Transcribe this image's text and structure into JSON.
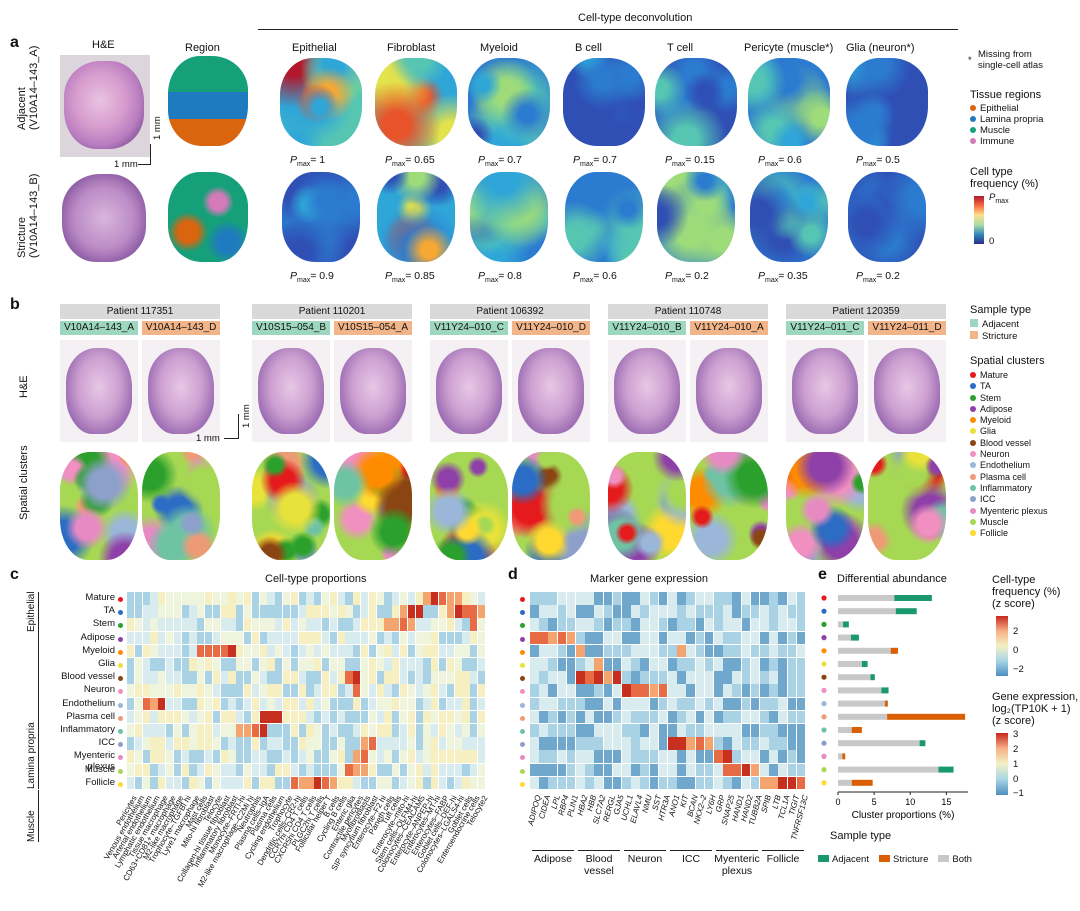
{
  "panel_a": {
    "letter": "a",
    "deconv_title": "Cell-type deconvolution",
    "he_label": "H&E",
    "region_label": "Region",
    "scale_h": "1 mm",
    "scale_v": "1 mm",
    "columns": [
      "Epithelial",
      "Fibroblast",
      "Myeloid",
      "B cell",
      "T cell",
      "Pericyte (muscle*)",
      "Glia (neuron*)"
    ],
    "row1": [
      "Adjacent",
      "(V10A14–143_A)"
    ],
    "row2": [
      "Stricture",
      "(V10A14–143_B)"
    ],
    "pmax_row1": [
      "= 1",
      "= 0.65",
      "= 0.7",
      "= 0.7",
      "= 0.15",
      "= 0.6",
      "= 0.5"
    ],
    "pmax_row2": [
      "= 0.9",
      "= 0.85",
      "= 0.8",
      "= 0.6",
      "= 0.2",
      "= 0.35",
      "= 0.2"
    ],
    "pmax_sym": "P",
    "pmax_sub": "max",
    "note_star": "*",
    "note": [
      "Missing from",
      "single-cell atlas"
    ],
    "tissue_title": "Tissue regions",
    "tissue_regions": [
      {
        "name": "Epithelial",
        "color": "#d9650f"
      },
      {
        "name": "Lamina propria",
        "color": "#1f7bbf"
      },
      {
        "name": "Muscle",
        "color": "#15a07a"
      },
      {
        "name": "Immune",
        "color": "#d47ab8"
      }
    ],
    "freq_title": [
      "Cell type",
      "frequency (%)"
    ],
    "freq_top_sym": "P",
    "freq_top_sub": "max",
    "freq_bottom": "0"
  },
  "panel_b": {
    "letter": "b",
    "patients": [
      {
        "name": "Patient 117351",
        "adj": "V10A14–143_A",
        "str": "V10A14–143_D"
      },
      {
        "name": "Patient 110201",
        "adj": "V10S15–054_B",
        "str": "V10S15–054_A"
      },
      {
        "name": "Patient 106392",
        "adj": "V11Y24–010_C",
        "str": "V11Y24–010_D"
      },
      {
        "name": "Patient 110748",
        "adj": "V11Y24–010_B",
        "str": "V11Y24–010_A"
      },
      {
        "name": "Patient 120359",
        "adj": "V11Y24–011_C",
        "str": "V11Y24–011_D"
      }
    ],
    "he_row": "H&E",
    "cluster_row": "Spatial clusters",
    "scale_h": "1 mm",
    "scale_v": "1 mm",
    "sample_type_title": "Sample type",
    "sample_types": [
      {
        "name": "Adjacent",
        "color": "#9ed7bf"
      },
      {
        "name": "Stricture",
        "color": "#f2b489"
      }
    ],
    "clusters_title": "Spatial clusters",
    "clusters": [
      {
        "name": "Mature",
        "color": "#e41a1c"
      },
      {
        "name": "TA",
        "color": "#2b6cc4"
      },
      {
        "name": "Stem",
        "color": "#2ca02c"
      },
      {
        "name": "Adipose",
        "color": "#8e3fa8"
      },
      {
        "name": "Myeloid",
        "color": "#ff8c00"
      },
      {
        "name": "Glia",
        "color": "#e8e23a"
      },
      {
        "name": "Blood vessel",
        "color": "#8b4513"
      },
      {
        "name": "Neuron",
        "color": "#f08fc0"
      },
      {
        "name": "Endothelium",
        "color": "#9ab6d8"
      },
      {
        "name": "Plasma cell",
        "color": "#ef9a76"
      },
      {
        "name": "Inflammatory",
        "color": "#6fc3a5"
      },
      {
        "name": "ICC",
        "color": "#8da0cb"
      },
      {
        "name": "Myenteric plexus",
        "color": "#e78ac3"
      },
      {
        "name": "Muscle",
        "color": "#a6d854"
      },
      {
        "name": "Follicle",
        "color": "#ffd92f"
      }
    ]
  },
  "panel_c": {
    "letter": "c",
    "title": "Cell-type proportions",
    "group_epithelial": "Epithelial",
    "group_lamina": "Lamina propria",
    "group_muscle": "Muscle",
    "rows": [
      "Mature",
      "TA",
      "Stem",
      "Adipose",
      "Myeloid",
      "Glia",
      "Blood vessel",
      "Neuron",
      "Endothelium",
      "Plasma cell",
      "Inflammatory",
      "ICC",
      "Myenteric plexus",
      "Muscle",
      "Follicle"
    ],
    "columns": [
      "Pericytes",
      "Venous endothelium",
      "Arterial endothelium",
      "Lymphatic endothelium",
      "Tissue macrophage",
      "CD63+CD81+ macrophage",
      "M2-like macrophage",
      "Trophocyte–TGFBI hi",
      "Lyve1 macrophage",
      "Mast cells",
      "Mito-hi fibroblast",
      "Telocyte",
      "Collagen-hi tissue fibroblast",
      "Inflammatory fibroblast",
      "Monocyte–FRTI-hi",
      "M2-like macrophage–C2Mi hi",
      "Neutrophils",
      "Plasma cells–IgA",
      "Plasma cells",
      "Cycling endothelium",
      "Trophocyte",
      "Dendritic cells–CR2-hi",
      "CCR7hi CD4 T cells",
      "CXCR5hi CD4 T cells",
      "PLGC2hi T cells",
      "Follicular helper T",
      "B cells",
      "Cycling B cells",
      "Enteric glia",
      "Contractile pericytes",
      "Myofibroblasts",
      "SIP syncytium fibroblast",
      "Enterocyte–F2 hi",
      "Paneth cells",
      "Tuft cells",
      "Enterocyte–mito-hi",
      "Stem cells–OLFM4-hi",
      "Colonocytes–CEACAM5",
      "Enterocyte–ANPEP-hi",
      "Enterocytes–MT-hi",
      "Enterocytes–FABP",
      "Goblet cells–DEF-hi",
      "Colonocytes–LGALS4-hi",
      "Goblet cells",
      "Enteroendocrine cells",
      "Telocyte2"
    ]
  },
  "panel_d": {
    "letter": "d",
    "title": "Marker gene expression",
    "genes": [
      "ADIPOQ",
      "CIDEA",
      "LPL",
      "RBP4",
      "PLIN1",
      "HBA2",
      "HBB",
      "SLC7A2",
      "RERGL",
      "GJA5",
      "UCHL1",
      "ELAVL4",
      "NMU",
      "SST",
      "HTR3A",
      "ANO1",
      "KIT",
      "BCAN",
      "NKX2–2",
      "LY6H",
      "GRP",
      "SNAP25",
      "HAND1",
      "HAND2",
      "TUBB2A",
      "SPIB",
      "LTB",
      "TCL1A",
      "TIGIT",
      "TNFRSF13C"
    ],
    "groups": [
      "Adipose",
      "Blood\nvessel",
      "Neuron",
      "ICC",
      "Myenteric\nplexus",
      "Follicle"
    ]
  },
  "panel_e": {
    "letter": "e",
    "title": "Differential abundance",
    "xlabel": "Cluster proportions (%)",
    "xticks": [
      "0",
      "5",
      "10",
      "15"
    ],
    "sample_type_title": "Sample type",
    "legend": [
      {
        "name": "Adjacent",
        "color": "#1a9a6c"
      },
      {
        "name": "Stricture",
        "color": "#d95f02"
      },
      {
        "name": "Both",
        "color": "#c8c8c8"
      }
    ],
    "ct_title": [
      "Cell-type",
      "frequency (%)",
      "(z score)"
    ],
    "ct_ticks": [
      "2",
      "0",
      "−2"
    ],
    "ge_title": [
      "Gene expression,",
      "log₂(TP10K + 1)",
      "(z score)"
    ],
    "ge_ticks": [
      "3",
      "2",
      "1",
      "0",
      "−1"
    ]
  },
  "chart_data": {
    "type": "bar",
    "title": "Differential abundance",
    "xlabel": "Cluster proportions (%)",
    "ylabel": "",
    "xlim": [
      0,
      18
    ],
    "categories": [
      "Mature",
      "TA",
      "Stem",
      "Adipose",
      "Myeloid",
      "Glia",
      "Blood vessel",
      "Neuron",
      "Endothelium",
      "Plasma cell",
      "Inflammatory",
      "ICC",
      "Myenteric plexus",
      "Muscle",
      "Follicle"
    ],
    "series": [
      {
        "name": "Both",
        "values": [
          7.8,
          8.0,
          0.7,
          1.8,
          7.3,
          3.3,
          4.5,
          6.0,
          6.5,
          6.8,
          1.9,
          11.3,
          0.6,
          13.9,
          1.9
        ]
      },
      {
        "name": "Adjacent",
        "values": [
          5.2,
          2.9,
          0.8,
          1.1,
          0,
          0.8,
          0.6,
          1.0,
          0,
          0,
          0,
          0.8,
          0,
          2.1,
          0
        ]
      },
      {
        "name": "Stricture",
        "values": [
          0,
          0,
          0,
          0,
          1.0,
          0,
          0,
          0,
          0.4,
          10.8,
          1.4,
          0,
          0.4,
          0,
          2.9
        ]
      }
    ]
  }
}
